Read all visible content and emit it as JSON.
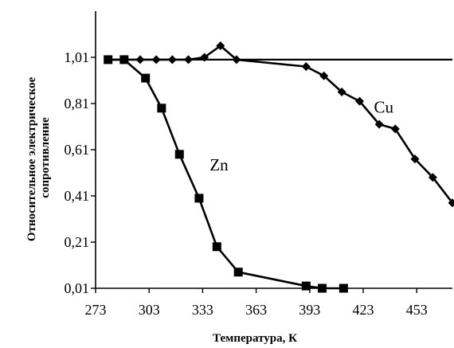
{
  "chart_data": {
    "type": "line",
    "xlabel": "Температура, К",
    "ylabel_lines": [
      "Относительное электрическое",
      "сопротивление"
    ],
    "xlim": [
      273,
      473
    ],
    "ylim": [
      0.01,
      1.21
    ],
    "xticks": [
      273,
      303,
      333,
      363,
      393,
      423,
      453
    ],
    "xtick_labels": [
      "273",
      "303",
      "333",
      "363",
      "393",
      "423",
      "453"
    ],
    "yticks": [
      0.01,
      0.21,
      0.41,
      0.61,
      0.81,
      1.01
    ],
    "ytick_labels": [
      "0,01",
      "0,21",
      "0,41",
      "0,61",
      "0,81",
      "1,01"
    ],
    "grid": false,
    "legend": "none",
    "reference_line": {
      "y": 1.0
    },
    "series": [
      {
        "name": "Cu",
        "marker": "diamond",
        "color": "#000000",
        "x": [
          280,
          289,
          298,
          307,
          316,
          325,
          334,
          343,
          352,
          391,
          401,
          411,
          421,
          432,
          441,
          452,
          462,
          473
        ],
        "y": [
          1.0,
          1.0,
          1.0,
          1.0,
          1.0,
          1.0,
          1.01,
          1.06,
          1.0,
          0.97,
          0.93,
          0.86,
          0.82,
          0.72,
          0.7,
          0.57,
          0.49,
          0.38
        ]
      },
      {
        "name": "Zn",
        "marker": "square",
        "color": "#000000",
        "x": [
          280,
          289,
          301,
          310,
          320,
          331,
          341,
          353,
          391,
          400,
          412
        ],
        "y": [
          1.0,
          1.0,
          0.92,
          0.79,
          0.59,
          0.4,
          0.19,
          0.08,
          0.02,
          0.01,
          0.01
        ]
      }
    ],
    "annotations": [
      {
        "text": "Cu",
        "x": 429,
        "y": 0.77
      },
      {
        "text": "Zn",
        "x": 337,
        "y": 0.52
      }
    ]
  }
}
